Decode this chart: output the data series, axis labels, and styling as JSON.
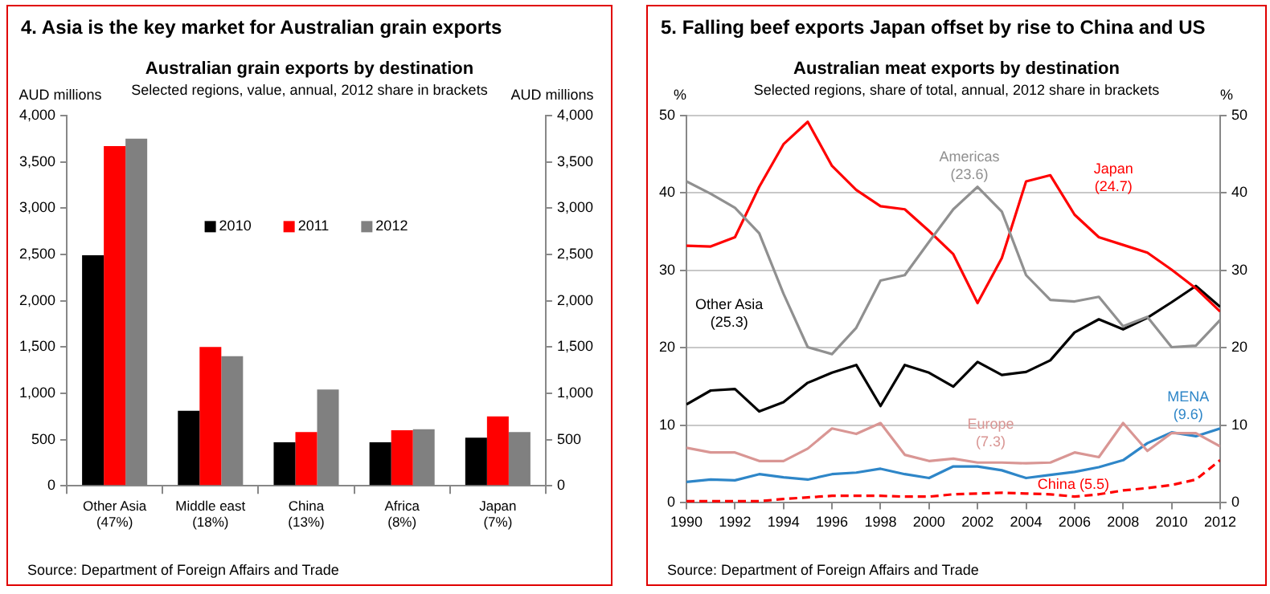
{
  "chart_data": [
    {
      "type": "bar",
      "title": "4. Asia is the key market for Australian grain exports",
      "subtitle": "Australian grain exports by destination",
      "ylabel": "AUD millions",
      "y2label": "AUD millions",
      "annotations": [
        "Selected regions, value, annual, 2012 share in brackets",
        "Source: Department of Foreign Affairs and Trade"
      ],
      "categories": [
        "Other Asia (47%)",
        "Middle east (18%)",
        "China (13%)",
        "Africa (8%)",
        "Japan (7%)"
      ],
      "series": [
        {
          "name": "2010",
          "color": "#000000",
          "values": [
            2490,
            810,
            470,
            470,
            520
          ]
        },
        {
          "name": "2011",
          "color": "#ff0000",
          "values": [
            3670,
            1500,
            580,
            600,
            750
          ]
        },
        {
          "name": "2012",
          "color": "#808080",
          "values": [
            3750,
            1400,
            1040,
            610,
            580
          ]
        }
      ],
      "ylim": [
        0,
        4000
      ],
      "yticks": [
        0,
        500,
        {
          "value": 1000,
          "label": "1,000"
        },
        {
          "value": 1500,
          "label": "1,500"
        },
        {
          "value": 2000,
          "label": "2,000"
        },
        {
          "value": 2500,
          "label": "2,500"
        },
        {
          "value": 3000,
          "label": "3,000"
        },
        {
          "value": 3500,
          "label": "3,500"
        },
        {
          "value": 4000,
          "label": "4,000"
        }
      ],
      "y2lim": [
        0,
        4000
      ],
      "y2ticks": [
        0,
        500,
        {
          "value": 1000,
          "label": "1,000"
        },
        {
          "value": 1500,
          "label": "1,500"
        },
        {
          "value": 2000,
          "label": "2,000"
        },
        {
          "value": 2500,
          "label": "2,500"
        },
        {
          "value": 3000,
          "label": "3,000"
        },
        {
          "value": 3500,
          "label": "3,500"
        },
        {
          "value": 4000,
          "label": "4,000"
        }
      ],
      "grid": false,
      "legend": "top"
    },
    {
      "type": "line",
      "title": "5. Falling beef exports Japan offset by rise to China and US",
      "subtitle": "Australian meat exports by destination",
      "ylabel": "%",
      "y2label": "%",
      "annotations": [
        "Selected regions, share of total, annual, 2012 share in brackets",
        "Source: Department of Foreign Affairs and Trade"
      ],
      "x": [
        1990,
        1991,
        1992,
        1993,
        1994,
        1995,
        1996,
        1997,
        1998,
        1999,
        2000,
        2001,
        2002,
        2003,
        2004,
        2005,
        2006,
        2007,
        2008,
        2009,
        2010,
        2011,
        2012
      ],
      "series": [
        {
          "name": "Americas (23.6)",
          "color": "#909090",
          "values": [
            41.5,
            39.9,
            38.1,
            34.8,
            27,
            20.1,
            19.2,
            22.6,
            28.7,
            29.4,
            33.7,
            37.9,
            40.8,
            37.6,
            29.4,
            26.2,
            26,
            26.6,
            22.8,
            24,
            20.1,
            20.3,
            23.6
          ]
        },
        {
          "name": "Japan (24.7)",
          "color": "#ff0000",
          "values": [
            33.2,
            33.1,
            34.3,
            40.8,
            46.3,
            49.2,
            43.5,
            40.4,
            38.3,
            37.9,
            35.1,
            32.1,
            25.8,
            31.6,
            41.5,
            42.3,
            37.2,
            34.3,
            33.3,
            32.3,
            30.1,
            27.7,
            24.7
          ]
        },
        {
          "name": "Other Asia (25.3)",
          "color": "#000000",
          "values": [
            12.7,
            14.5,
            14.7,
            11.8,
            13,
            15.5,
            16.8,
            17.8,
            12.5,
            17.8,
            16.8,
            15,
            18.2,
            16.5,
            16.9,
            18.4,
            22,
            23.7,
            22.4,
            23.9,
            25.9,
            28,
            25.3
          ]
        },
        {
          "name": "Europe (7.3)",
          "color": "#d99694",
          "values": [
            7.1,
            6.5,
            6.5,
            5.4,
            5.4,
            7,
            9.6,
            8.9,
            10.3,
            6.2,
            5.4,
            5.7,
            5.2,
            5.2,
            5.1,
            5.2,
            6.5,
            5.9,
            10.3,
            6.7,
            9,
            9,
            7.3
          ]
        },
        {
          "name": "China (5.5)",
          "color": "#ff0000",
          "line_style": "dashed",
          "values": [
            0.2,
            0.2,
            0.2,
            0.2,
            0.5,
            0.7,
            0.9,
            0.9,
            0.9,
            0.8,
            0.8,
            1.1,
            1.2,
            1.3,
            1.2,
            1.1,
            0.8,
            1.1,
            1.6,
            1.9,
            2.3,
            3,
            5.5
          ]
        },
        {
          "name": "MENA (9.6)",
          "color": "#2e86c8",
          "values": [
            2.7,
            3,
            2.9,
            3.7,
            3.3,
            3,
            3.7,
            3.9,
            4.4,
            3.7,
            3.2,
            4.7,
            4.7,
            4.2,
            3.2,
            3.6,
            4,
            4.6,
            5.5,
            7.7,
            9.1,
            8.6,
            9.6
          ]
        }
      ],
      "xlim": [
        1990,
        2012
      ],
      "xticks": [
        1990,
        1992,
        1994,
        1996,
        1998,
        2000,
        2002,
        2004,
        2006,
        2008,
        2010,
        2012
      ],
      "ylim": [
        0,
        50
      ],
      "yticks": [
        0,
        10,
        20,
        30,
        40,
        50
      ],
      "y2lim": [
        0,
        50
      ],
      "y2ticks": [
        0,
        10,
        20,
        30,
        40,
        50
      ],
      "grid": "y",
      "legend": false,
      "marker": "none",
      "line_style": "solid"
    }
  ]
}
